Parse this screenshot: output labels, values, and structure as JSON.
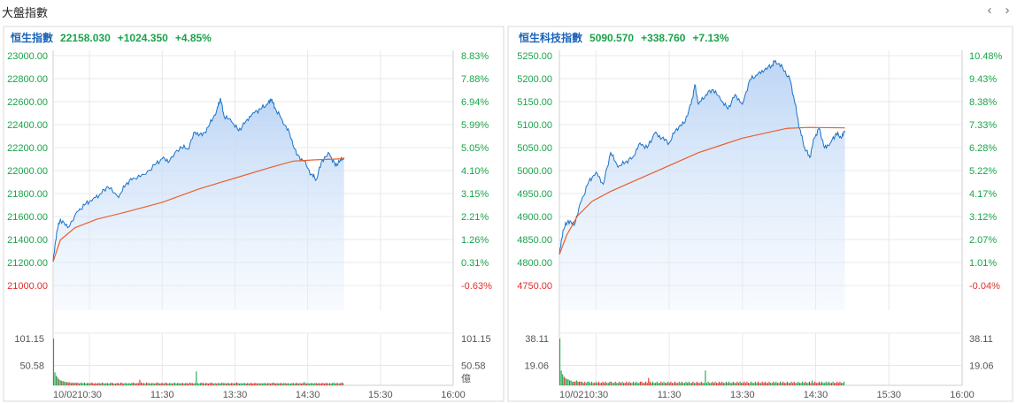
{
  "page": {
    "title": "大盤指數",
    "prev_icon": "‹",
    "next_icon": "›"
  },
  "colors": {
    "up": "#1aa34a",
    "down": "#e0302a",
    "price_line": "#1a73c8",
    "avg_line": "#e8602c",
    "name": "#1a63b8"
  },
  "chart_data": [
    {
      "type": "area",
      "name": "恒生指數",
      "last": "22158.030",
      "change": "+1024.350",
      "change_pct": "+4.85%",
      "ylim": [
        20900,
        23000
      ],
      "y_ticks": [
        "23000.00",
        "22800.00",
        "22600.00",
        "22400.00",
        "22200.00",
        "22000.00",
        "21800.00",
        "21600.00",
        "21400.00",
        "21200.00",
        "21000.00"
      ],
      "pct_ticks": [
        "8.83%",
        "7.88%",
        "6.94%",
        "5.99%",
        "5.05%",
        "4.10%",
        "3.15%",
        "2.21%",
        "1.26%",
        "0.31%",
        "-0.63%"
      ],
      "x_ticks": [
        "10/02",
        "10:30",
        "11:30",
        "13:30",
        "14:30",
        "15:30",
        "16:00"
      ],
      "price_points": [
        [
          0,
          21300
        ],
        [
          0.05,
          21550
        ],
        [
          0.1,
          21650
        ],
        [
          0.2,
          21580
        ],
        [
          0.35,
          21720
        ],
        [
          0.45,
          21780
        ],
        [
          0.55,
          21820
        ],
        [
          0.65,
          21860
        ],
        [
          0.75,
          21920
        ],
        [
          0.9,
          21830
        ],
        [
          1.0,
          21940
        ],
        [
          1.1,
          21990
        ],
        [
          1.25,
          22020
        ],
        [
          1.4,
          22100
        ],
        [
          1.5,
          22150
        ],
        [
          1.6,
          22130
        ],
        [
          1.75,
          22250
        ],
        [
          1.85,
          22230
        ],
        [
          1.95,
          22370
        ],
        [
          2.05,
          22340
        ],
        [
          2.15,
          22430
        ],
        [
          2.25,
          22550
        ],
        [
          2.3,
          22650
        ],
        [
          2.35,
          22500
        ],
        [
          2.45,
          22460
        ],
        [
          2.55,
          22380
        ],
        [
          2.65,
          22460
        ],
        [
          2.75,
          22530
        ],
        [
          2.85,
          22560
        ],
        [
          2.95,
          22600
        ],
        [
          3.0,
          22640
        ],
        [
          3.05,
          22570
        ],
        [
          3.15,
          22470
        ],
        [
          3.25,
          22360
        ],
        [
          3.35,
          22180
        ],
        [
          3.45,
          22130
        ],
        [
          3.55,
          22020
        ],
        [
          3.62,
          21980
        ],
        [
          3.7,
          22140
        ],
        [
          3.8,
          22190
        ],
        [
          3.88,
          22090
        ],
        [
          3.95,
          22140
        ],
        [
          4.0,
          22160
        ]
      ],
      "avg_points": [
        [
          0,
          21300
        ],
        [
          0.1,
          21480
        ],
        [
          0.3,
          21580
        ],
        [
          0.6,
          21650
        ],
        [
          1.0,
          21710
        ],
        [
          1.5,
          21790
        ],
        [
          2.0,
          21900
        ],
        [
          2.5,
          21990
        ],
        [
          3.0,
          22080
        ],
        [
          3.3,
          22130
        ],
        [
          3.6,
          22140
        ],
        [
          4.0,
          22150
        ]
      ],
      "volume": {
        "max_label": "101.15",
        "mid_label": "50.58",
        "unit": "億",
        "max": 101.15,
        "bars": [
          101,
          28,
          21,
          17,
          13,
          11,
          10,
          9,
          8,
          7,
          7,
          6,
          7,
          5,
          6,
          5,
          6,
          5,
          6,
          4,
          6,
          5,
          5,
          6,
          4,
          5,
          5,
          4,
          6,
          5,
          4,
          5,
          4,
          5,
          5,
          4,
          6,
          5,
          4,
          5,
          5,
          4,
          5,
          6,
          5,
          4,
          4,
          5,
          5,
          4,
          6,
          5,
          4,
          5,
          5,
          4,
          5,
          4,
          5,
          6,
          5,
          4,
          5,
          5,
          12,
          6,
          5,
          5,
          4,
          6,
          5,
          5,
          4,
          5,
          5,
          4,
          5,
          6,
          5,
          4,
          5,
          5,
          4,
          6,
          5,
          4,
          5,
          5,
          4,
          5,
          6,
          4,
          5,
          5,
          4,
          5,
          5,
          4,
          5,
          5,
          4,
          6,
          5,
          5,
          4,
          5,
          30,
          5,
          4,
          5,
          6,
          5,
          4,
          5,
          5,
          4,
          5,
          6,
          5,
          4,
          5,
          4,
          5,
          5,
          4,
          6,
          5,
          5,
          4,
          5,
          5,
          4,
          5,
          5,
          4,
          5,
          6,
          5,
          4,
          5,
          4,
          5,
          5,
          4,
          5,
          4,
          5,
          5,
          4,
          5,
          5,
          4,
          5,
          4,
          5,
          4,
          5,
          5,
          4,
          5,
          5,
          4,
          5,
          6,
          5,
          4,
          5,
          4,
          5,
          5,
          4,
          5,
          5,
          4,
          5,
          4,
          4,
          5,
          5,
          4,
          5,
          5,
          4,
          5,
          4,
          5,
          7,
          5,
          4,
          5,
          4,
          5,
          5,
          4,
          5,
          5,
          4,
          5,
          4,
          5,
          5,
          4,
          5,
          5,
          4,
          5,
          4,
          5,
          6,
          4,
          5,
          5,
          4,
          5,
          6,
          5
        ]
      }
    },
    {
      "type": "area",
      "name": "恒生科技指數",
      "last": "5090.570",
      "change": "+338.760",
      "change_pct": "+7.13%",
      "ylim": [
        4725,
        5250
      ],
      "y_ticks": [
        "5250.00",
        "5200.00",
        "5150.00",
        "5100.00",
        "5050.00",
        "5000.00",
        "4950.00",
        "4900.00",
        "4850.00",
        "4800.00",
        "4750.00"
      ],
      "pct_ticks": [
        "10.48%",
        "9.43%",
        "8.38%",
        "7.33%",
        "6.28%",
        "5.22%",
        "4.17%",
        "3.12%",
        "2.07%",
        "1.01%",
        "-0.04%"
      ],
      "x_ticks": [
        "10/02",
        "10:30",
        "11:30",
        "13:30",
        "14:30",
        "15:30",
        "16:00"
      ],
      "price_points": [
        [
          0,
          4840
        ],
        [
          0.05,
          4890
        ],
        [
          0.12,
          4910
        ],
        [
          0.2,
          4900
        ],
        [
          0.3,
          4950
        ],
        [
          0.4,
          4990
        ],
        [
          0.5,
          5010
        ],
        [
          0.6,
          4985
        ],
        [
          0.7,
          5050
        ],
        [
          0.8,
          5020
        ],
        [
          0.9,
          5030
        ],
        [
          1.0,
          5040
        ],
        [
          1.1,
          5070
        ],
        [
          1.2,
          5060
        ],
        [
          1.3,
          5090
        ],
        [
          1.4,
          5080
        ],
        [
          1.5,
          5070
        ],
        [
          1.6,
          5100
        ],
        [
          1.7,
          5110
        ],
        [
          1.8,
          5150
        ],
        [
          1.85,
          5190
        ],
        [
          1.9,
          5150
        ],
        [
          2.0,
          5170
        ],
        [
          2.1,
          5180
        ],
        [
          2.2,
          5160
        ],
        [
          2.3,
          5140
        ],
        [
          2.4,
          5170
        ],
        [
          2.5,
          5150
        ],
        [
          2.6,
          5200
        ],
        [
          2.7,
          5210
        ],
        [
          2.8,
          5220
        ],
        [
          2.9,
          5230
        ],
        [
          2.95,
          5240
        ],
        [
          3.05,
          5225
        ],
        [
          3.15,
          5200
        ],
        [
          3.22,
          5150
        ],
        [
          3.28,
          5100
        ],
        [
          3.35,
          5060
        ],
        [
          3.42,
          5040
        ],
        [
          3.48,
          5080
        ],
        [
          3.55,
          5100
        ],
        [
          3.62,
          5060
        ],
        [
          3.7,
          5070
        ],
        [
          3.78,
          5090
        ],
        [
          3.85,
          5080
        ],
        [
          3.9,
          5095
        ]
      ],
      "avg_points": [
        [
          0,
          4840
        ],
        [
          0.1,
          4880
        ],
        [
          0.25,
          4920
        ],
        [
          0.45,
          4950
        ],
        [
          0.7,
          4970
        ],
        [
          1.0,
          4990
        ],
        [
          1.3,
          5010
        ],
        [
          1.6,
          5030
        ],
        [
          1.9,
          5050
        ],
        [
          2.2,
          5065
        ],
        [
          2.5,
          5080
        ],
        [
          2.8,
          5090
        ],
        [
          3.1,
          5100
        ],
        [
          3.4,
          5102
        ],
        [
          3.9,
          5101
        ]
      ],
      "volume": {
        "max_label": "38.11",
        "mid_label": "19.06",
        "unit": "",
        "max": 38.11,
        "bars": [
          38,
          12,
          9,
          7,
          6,
          5,
          5,
          4,
          4,
          3,
          3,
          3,
          4,
          3,
          3,
          3,
          3,
          2,
          3,
          2,
          3,
          3,
          2,
          3,
          2,
          2,
          3,
          2,
          3,
          2,
          2,
          3,
          2,
          3,
          2,
          2,
          3,
          3,
          2,
          2,
          3,
          2,
          2,
          3,
          2,
          3,
          2,
          2,
          3,
          2,
          3,
          2,
          2,
          3,
          2,
          3,
          2,
          2,
          3,
          3,
          2,
          2,
          3,
          2,
          6,
          3,
          2,
          3,
          2,
          2,
          3,
          2,
          2,
          3,
          2,
          3,
          2,
          2,
          3,
          2,
          3,
          2,
          2,
          3,
          2,
          2,
          3,
          2,
          3,
          2,
          2,
          3,
          2,
          3,
          2,
          2,
          3,
          2,
          2,
          3,
          2,
          2,
          3,
          2,
          2,
          12,
          2,
          3,
          2,
          2,
          3,
          2,
          3,
          2,
          2,
          3,
          2,
          3,
          2,
          2,
          3,
          2,
          3,
          2,
          2,
          3,
          2,
          2,
          3,
          2,
          3,
          2,
          2,
          3,
          2,
          3,
          2,
          2,
          3,
          2,
          2,
          3,
          2,
          3,
          2,
          2,
          3,
          2,
          3,
          2,
          2,
          3,
          2,
          2,
          3,
          2,
          3,
          2,
          2,
          3,
          2,
          3,
          2,
          2,
          3,
          2,
          2,
          3,
          2,
          3,
          2,
          2,
          3,
          2,
          2,
          3,
          2,
          3,
          2,
          2,
          3,
          2,
          4,
          2,
          3,
          2,
          2,
          3,
          2,
          3,
          2,
          2,
          3,
          2,
          3,
          2,
          2,
          3,
          2,
          2,
          3,
          2,
          3,
          2,
          2,
          3
        ]
      }
    }
  ]
}
